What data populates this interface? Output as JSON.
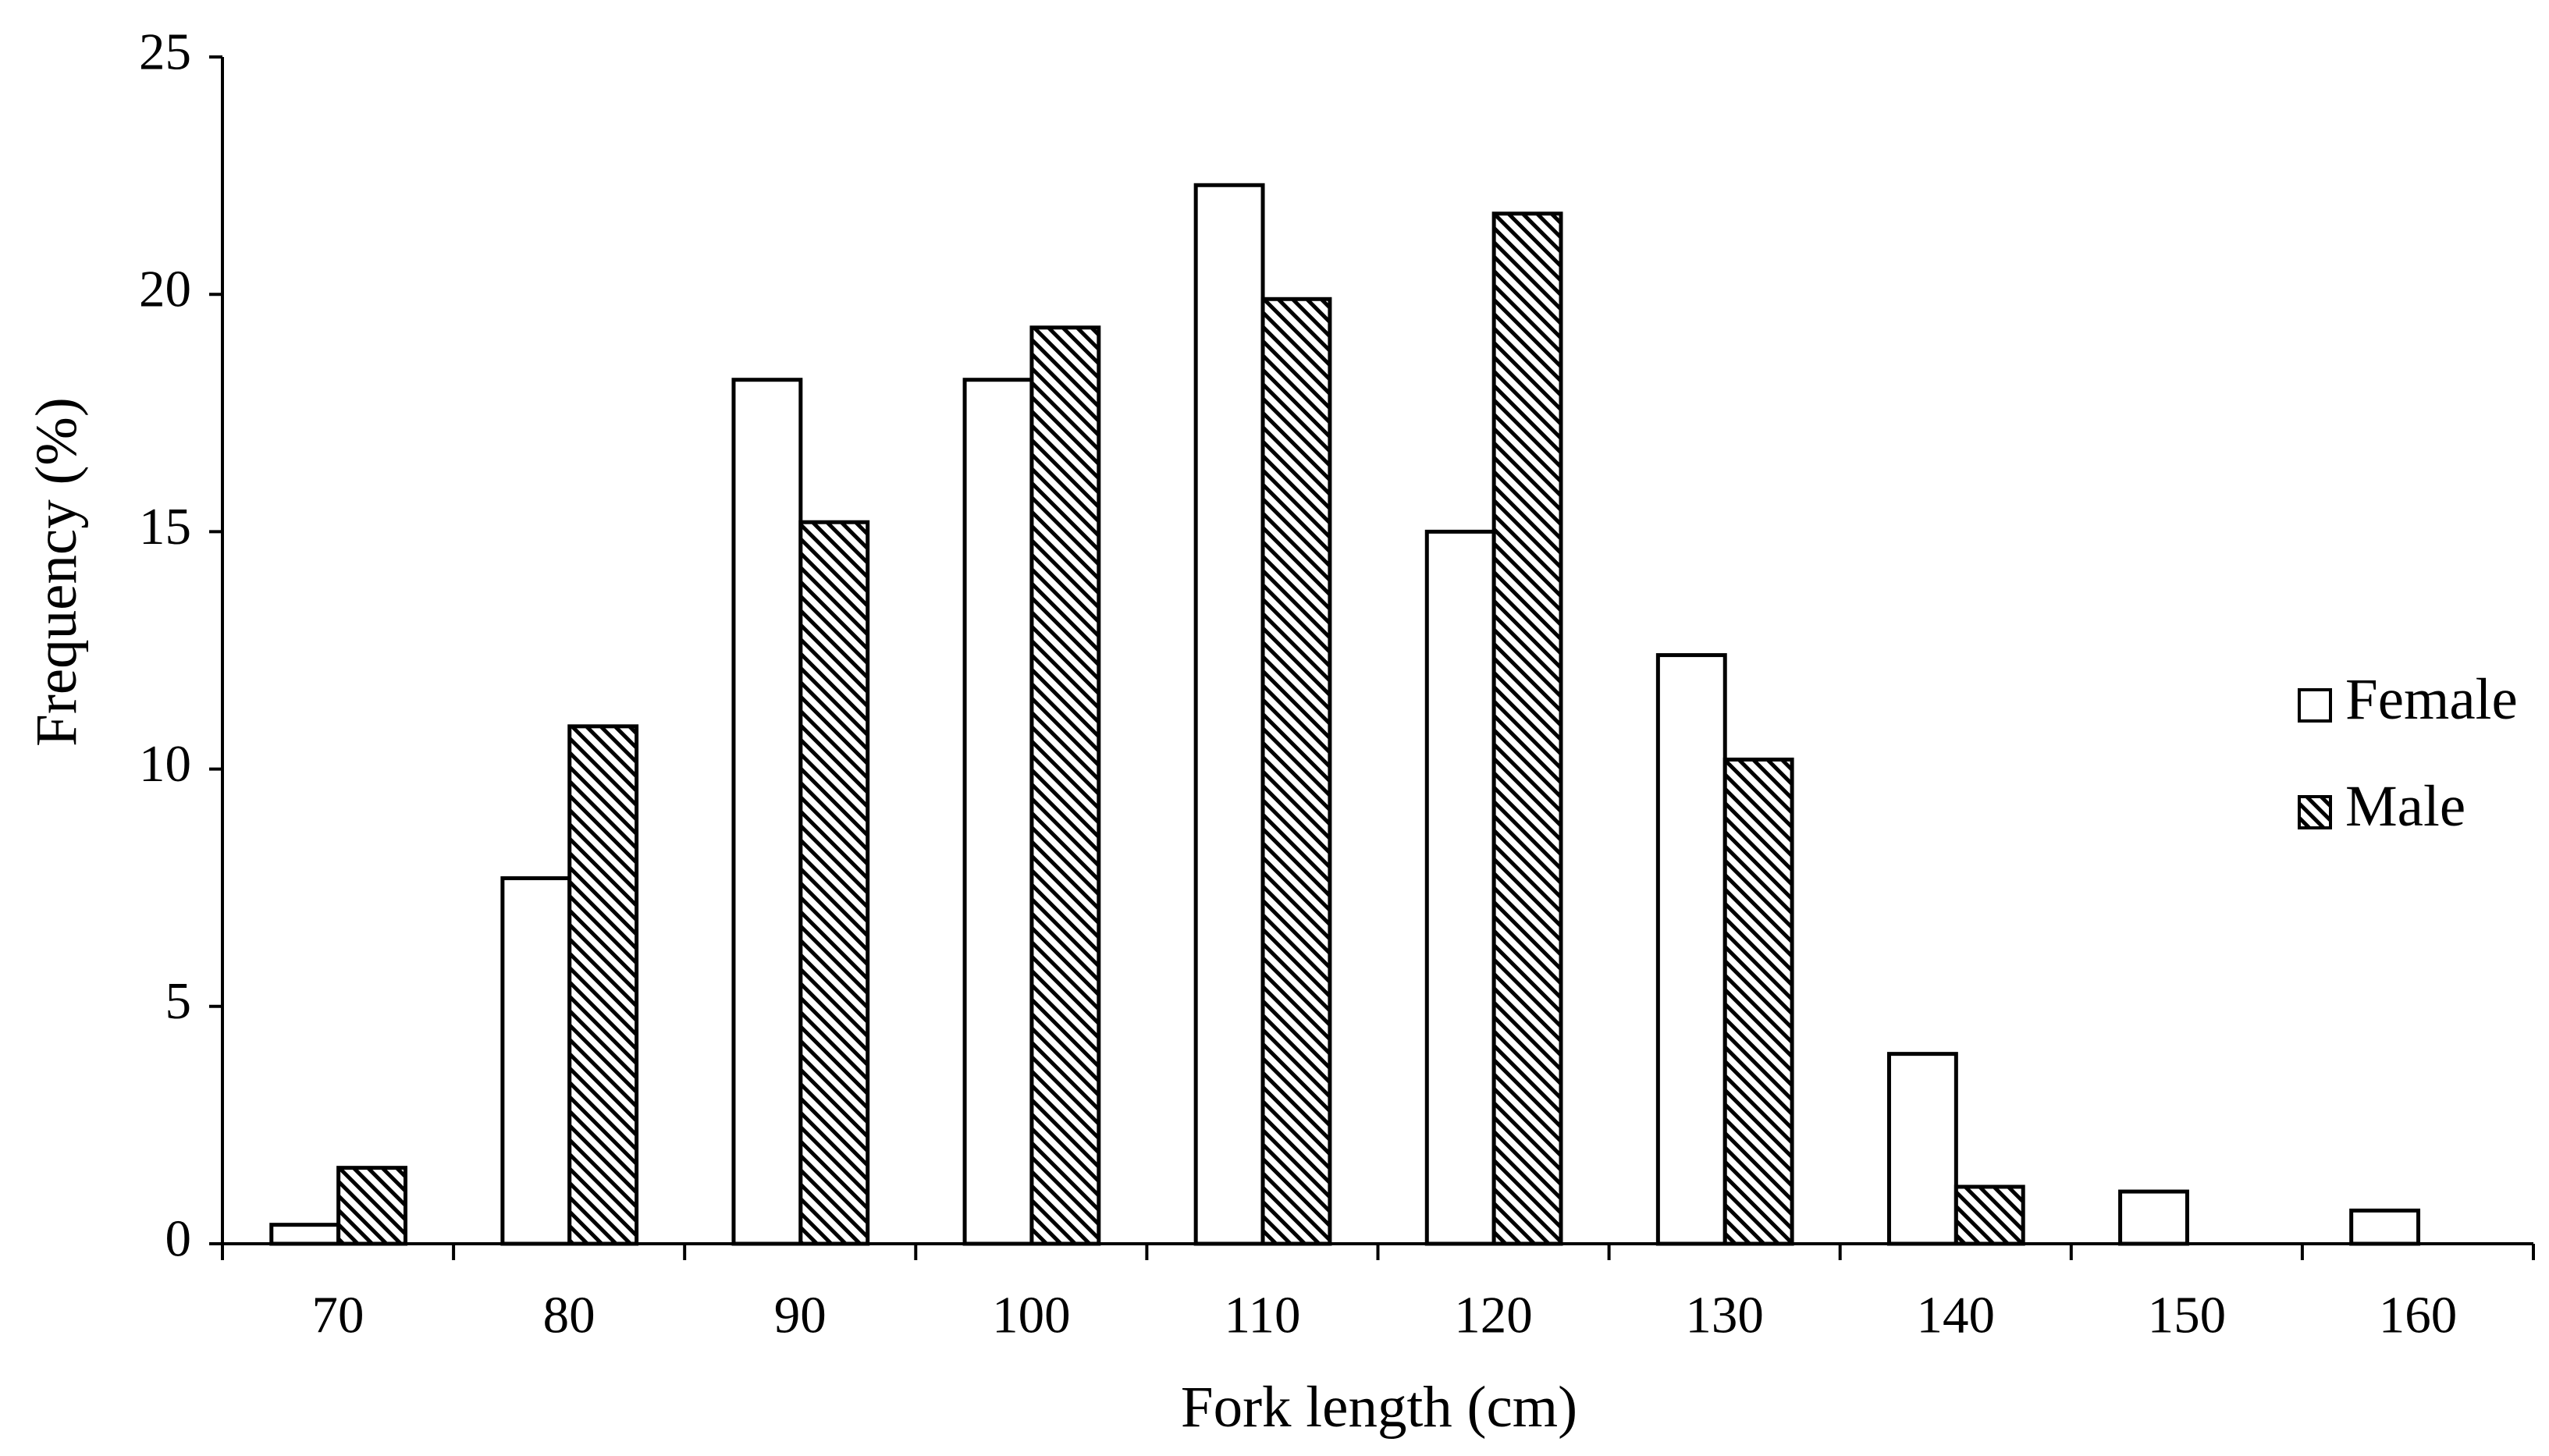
{
  "chart_data": {
    "type": "bar",
    "x_label": "Fork length (cm)",
    "y_label": "Frequency (%)",
    "categories": [
      "70",
      "80",
      "90",
      "100",
      "110",
      "120",
      "130",
      "140",
      "150",
      "160"
    ],
    "series": [
      {
        "name": "Female",
        "color": "#ffffff",
        "hatch": false,
        "values": [
          0.4,
          7.7,
          18.2,
          18.2,
          22.3,
          15.0,
          12.4,
          4.0,
          1.1,
          0.7
        ]
      },
      {
        "name": "Male",
        "color": "#000000",
        "hatch": true,
        "values": [
          1.6,
          10.9,
          15.2,
          19.3,
          19.9,
          21.7,
          10.2,
          1.2,
          null,
          null
        ]
      }
    ],
    "ylim": [
      0,
      25
    ],
    "yticks": [
      0,
      5,
      10,
      15,
      20,
      25
    ],
    "grid": false,
    "legend": "right"
  }
}
